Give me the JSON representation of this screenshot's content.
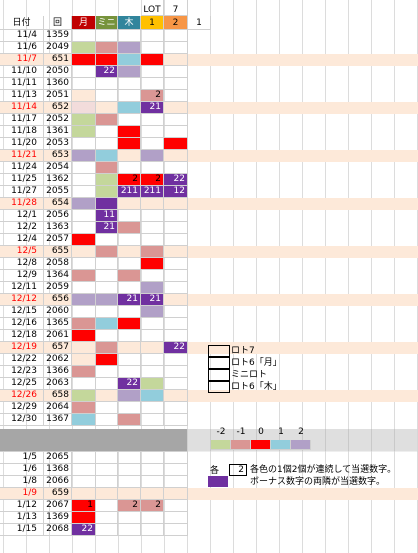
{
  "header": {
    "top": [
      "LOT",
      "7"
    ],
    "cols": [
      "日付",
      "回",
      "月",
      "ミニ",
      "木",
      "1",
      "2",
      "1"
    ],
    "col_colors": [
      null,
      null,
      "#c00000",
      "#77933c",
      "#31859c",
      "#ffc000",
      "#f79646",
      null
    ]
  },
  "rows": [
    {
      "date": "11/4",
      "round": "1359",
      "cells": [
        null,
        null,
        null,
        null,
        null
      ]
    },
    {
      "date": "11/6",
      "round": "2049",
      "cells": [
        {
          "color": "#c4d79b"
        },
        {
          "color": "#da9694"
        },
        {
          "color": "#b1a0c7"
        },
        null,
        null
      ]
    },
    {
      "date": "11/7",
      "round": "651",
      "fill": "#fde9d9",
      "cells": [
        {
          "color": "#ff0000"
        },
        {
          "color": "#ff0000"
        },
        {
          "color": "#92cddc"
        },
        {
          "color": "#ff0000"
        },
        null
      ]
    },
    {
      "date": "11/10",
      "round": "2050",
      "cells": [
        null,
        {
          "color": "#7030a0",
          "label": "22"
        },
        {
          "color": "#b1a0c7"
        },
        null,
        null
      ]
    },
    {
      "date": "11/11",
      "round": "1360",
      "cells": [
        null,
        null,
        null,
        null,
        null
      ]
    },
    {
      "date": "11/13",
      "round": "2051",
      "cells": [
        {
          "color": "#fde9d9"
        },
        null,
        null,
        {
          "color": "#da9694",
          "label": "2"
        },
        null
      ]
    },
    {
      "date": "11/14",
      "round": "652",
      "fill": "#fde9d9",
      "cells": [
        {
          "color": "#f2dcdb"
        },
        null,
        {
          "color": "#92cddc"
        },
        {
          "color": "#7030a0",
          "label": "21"
        },
        null
      ]
    },
    {
      "date": "11/17",
      "round": "2052",
      "cells": [
        {
          "color": "#c4d79b"
        },
        {
          "color": "#da9694"
        },
        null,
        null,
        null
      ]
    },
    {
      "date": "11/18",
      "round": "1361",
      "cells": [
        {
          "color": "#c4d79b"
        },
        null,
        {
          "color": "#ff0000"
        },
        null,
        null
      ]
    },
    {
      "date": "11/20",
      "round": "2053",
      "cells": [
        null,
        null,
        {
          "color": "#ff0000"
        },
        null,
        {
          "color": "#ff0000"
        }
      ]
    },
    {
      "date": "11/21",
      "round": "653",
      "fill": "#fde9d9",
      "cells": [
        {
          "color": "#b1a0c7"
        },
        {
          "color": "#92cddc"
        },
        null,
        {
          "color": "#b1a0c7"
        },
        null
      ]
    },
    {
      "date": "11/24",
      "round": "2054",
      "cells": [
        null,
        {
          "color": "#da9694"
        },
        null,
        null,
        null
      ]
    },
    {
      "date": "11/25",
      "round": "1362",
      "cells": [
        null,
        {
          "color": "#c4d79b"
        },
        {
          "color": "#ff0000",
          "label": "2"
        },
        {
          "color": "#ff0000",
          "label": "2"
        },
        {
          "color": "#7030a0",
          "label": "22"
        }
      ]
    },
    {
      "date": "11/27",
      "round": "2055",
      "cells": [
        null,
        {
          "color": "#c4d79b"
        },
        {
          "color": "#7030a0",
          "label": "211"
        },
        {
          "color": "#7030a0",
          "label": "211"
        },
        {
          "color": "#7030a0",
          "label": "12"
        }
      ]
    },
    {
      "date": "11/28",
      "round": "654",
      "fill": "#fde9d9",
      "cells": [
        {
          "color": "#b1a0c7"
        },
        {
          "color": "#7030a0"
        },
        null,
        null,
        null
      ]
    },
    {
      "date": "12/1",
      "round": "2056",
      "cells": [
        null,
        {
          "color": "#7030a0",
          "label": "11"
        },
        null,
        null,
        null
      ]
    },
    {
      "date": "12/2",
      "round": "1363",
      "cells": [
        null,
        {
          "color": "#7030a0",
          "label": "21"
        },
        {
          "color": "#da9694"
        },
        null,
        null
      ]
    },
    {
      "date": "12/4",
      "round": "2057",
      "cells": [
        {
          "color": "#ff0000"
        },
        null,
        null,
        null,
        null
      ]
    },
    {
      "date": "12/5",
      "round": "655",
      "fill": "#fde9d9",
      "cells": [
        null,
        {
          "color": "#da9694"
        },
        null,
        {
          "color": "#da9694"
        },
        null
      ]
    },
    {
      "date": "12/8",
      "round": "2058",
      "cells": [
        null,
        null,
        null,
        {
          "color": "#ff0000"
        },
        null
      ]
    },
    {
      "date": "12/9",
      "round": "1364",
      "cells": [
        {
          "color": "#da9694"
        },
        null,
        {
          "color": "#da9694"
        },
        null,
        null
      ]
    },
    {
      "date": "12/11",
      "round": "2059",
      "cells": [
        null,
        null,
        null,
        {
          "color": "#b1a0c7"
        },
        null
      ]
    },
    {
      "date": "12/12",
      "round": "656",
      "fill": "#fde9d9",
      "cells": [
        {
          "color": "#b1a0c7"
        },
        {
          "color": "#b1a0c7"
        },
        {
          "color": "#7030a0",
          "label": "21"
        },
        {
          "color": "#7030a0",
          "label": "21"
        },
        null
      ]
    },
    {
      "date": "12/15",
      "round": "2060",
      "cells": [
        null,
        null,
        null,
        {
          "color": "#b1a0c7"
        },
        null
      ]
    },
    {
      "date": "12/16",
      "round": "1365",
      "cells": [
        {
          "color": "#da9694"
        },
        {
          "color": "#92cddc"
        },
        {
          "color": "#ff0000"
        },
        null,
        null
      ]
    },
    {
      "date": "12/18",
      "round": "2061",
      "cells": [
        {
          "color": "#ff0000"
        },
        null,
        null,
        null,
        null
      ]
    },
    {
      "date": "12/19",
      "round": "657",
      "fill": "#fde9d9",
      "cells": [
        null,
        {
          "color": "#da9694"
        },
        null,
        null,
        {
          "color": "#7030a0",
          "label": "22"
        }
      ]
    },
    {
      "date": "12/22",
      "round": "2062",
      "cells": [
        {
          "color": "#fde9d9"
        },
        {
          "color": "#ff0000"
        },
        null,
        null,
        null
      ]
    },
    {
      "date": "12/23",
      "round": "1366",
      "cells": [
        {
          "color": "#da9694"
        },
        null,
        null,
        null,
        null
      ]
    },
    {
      "date": "12/25",
      "round": "2063",
      "cells": [
        null,
        null,
        {
          "color": "#7030a0",
          "label": "22"
        },
        {
          "color": "#c4d79b"
        },
        null
      ]
    },
    {
      "date": "12/26",
      "round": "658",
      "fill": "#fde9d9",
      "cells": [
        {
          "color": "#c4d79b"
        },
        null,
        {
          "color": "#b1a0c7"
        },
        {
          "color": "#92cddc"
        },
        null
      ]
    },
    {
      "date": "12/29",
      "round": "2064",
      "cells": [
        {
          "color": "#da9694"
        },
        null,
        null,
        null,
        null
      ]
    },
    {
      "date": "12/30",
      "round": "1367",
      "cells": [
        {
          "color": "#92cddc"
        },
        null,
        {
          "color": "#da9694"
        },
        null,
        null
      ]
    }
  ],
  "rows2": [
    {
      "date": "1/5",
      "round": "2065",
      "cells": [
        null,
        null,
        null,
        null,
        null
      ]
    },
    {
      "date": "1/6",
      "round": "1368",
      "cells": [
        null,
        null,
        null,
        null,
        null
      ]
    },
    {
      "date": "1/8",
      "round": "2066",
      "cells": [
        null,
        null,
        null,
        null,
        null
      ]
    },
    {
      "date": "1/9",
      "round": "659",
      "fill": "#fde9d9",
      "cells": [
        null,
        null,
        null,
        null,
        null
      ]
    },
    {
      "date": "1/12",
      "round": "2067",
      "cells": [
        {
          "color": "#ff0000",
          "label": "1"
        },
        null,
        {
          "color": "#da9694",
          "label": "2"
        },
        {
          "color": "#da9694",
          "label": "2"
        },
        null
      ]
    },
    {
      "date": "1/13",
      "round": "1369",
      "cells": [
        {
          "color": "#ff0000"
        },
        null,
        null,
        null,
        null
      ]
    },
    {
      "date": "1/15",
      "round": "2068",
      "cells": [
        {
          "color": "#7030a0",
          "label": "22"
        },
        null,
        null,
        null,
        null
      ]
    }
  ],
  "legend": [
    "ロト7",
    "ロト6「月」",
    "ミニロト",
    "ロト6「木」"
  ],
  "scale": [
    {
      "label": "-2",
      "color": "#c4d79b"
    },
    {
      "label": "-1",
      "color": "#da9694"
    },
    {
      "label": "0",
      "color": "#ff0000"
    },
    {
      "label": "1",
      "color": "#92cddc"
    },
    {
      "label": "2",
      "color": "#b1a0c7"
    }
  ],
  "notes": {
    "each": "各",
    "sample": "2",
    "line1": "各色の1個2個が連続して当選数字。",
    "line2": "ボーナス数字の両隣が当選数字。",
    "bonus_color": "#7030a0"
  }
}
